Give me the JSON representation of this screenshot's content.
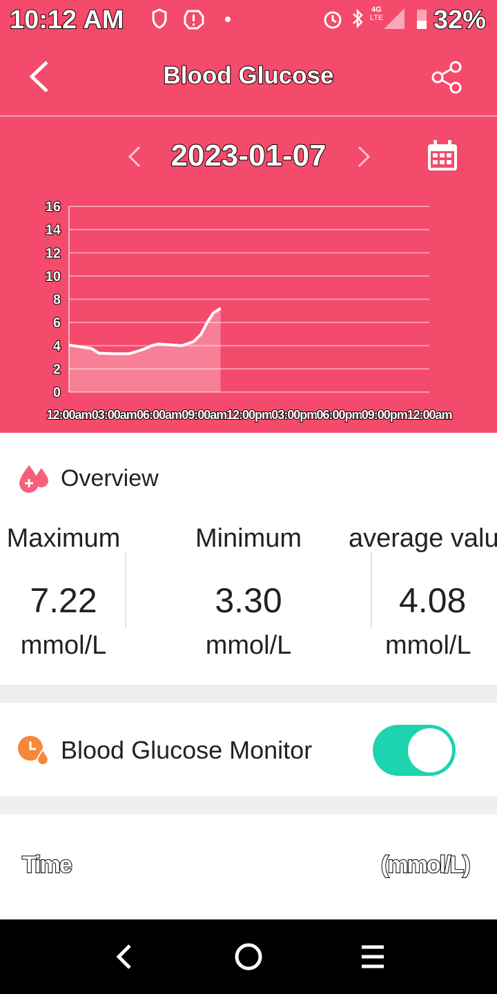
{
  "status_bar": {
    "time": "10:12 AM",
    "network_top": "4G",
    "network_bottom": "LTE",
    "battery": "32%"
  },
  "header": {
    "title": "Blood Glucose"
  },
  "date": "2023-01-07",
  "chart_data": {
    "type": "line",
    "color": "#ffffff",
    "grid": true,
    "x": [
      0,
      1,
      1.5,
      2,
      3,
      4,
      5,
      5.5,
      6,
      7,
      7.5,
      8.3,
      8.8,
      9.2,
      9.6,
      10.1
    ],
    "values": [
      4.05,
      3.85,
      3.75,
      3.35,
      3.3,
      3.3,
      3.7,
      4.0,
      4.15,
      4.05,
      4.0,
      4.35,
      5.0,
      6.0,
      6.8,
      7.22
    ],
    "xlim": [
      0,
      24
    ],
    "xticks": [
      {
        "value": 0,
        "label": "12:00am"
      },
      {
        "value": 3,
        "label": "03:00am"
      },
      {
        "value": 6,
        "label": "06:00am"
      },
      {
        "value": 9,
        "label": "09:00am"
      },
      {
        "value": 12,
        "label": "12:00pm"
      },
      {
        "value": 15,
        "label": "03:00pm"
      },
      {
        "value": 18,
        "label": "06:00pm"
      },
      {
        "value": 21,
        "label": "09:00pm"
      },
      {
        "value": 24,
        "label": "12:00am"
      }
    ],
    "ylim": [
      0,
      16
    ],
    "yticks": [
      0,
      2,
      4,
      6,
      8,
      10,
      12,
      14,
      16
    ]
  },
  "overview": {
    "title": "Overview",
    "stats": [
      {
        "label": "Maximum",
        "value": "7.22",
        "unit": "mmol/L"
      },
      {
        "label": "Minimum",
        "value": "3.30",
        "unit": "mmol/L"
      },
      {
        "label": "average value",
        "value": "4.08",
        "unit": "mmol/L"
      }
    ]
  },
  "monitor": {
    "label": "Blood Glucose Monitor",
    "enabled": true
  },
  "table_header": {
    "time": "Time",
    "unit": "(mmol/L)"
  }
}
